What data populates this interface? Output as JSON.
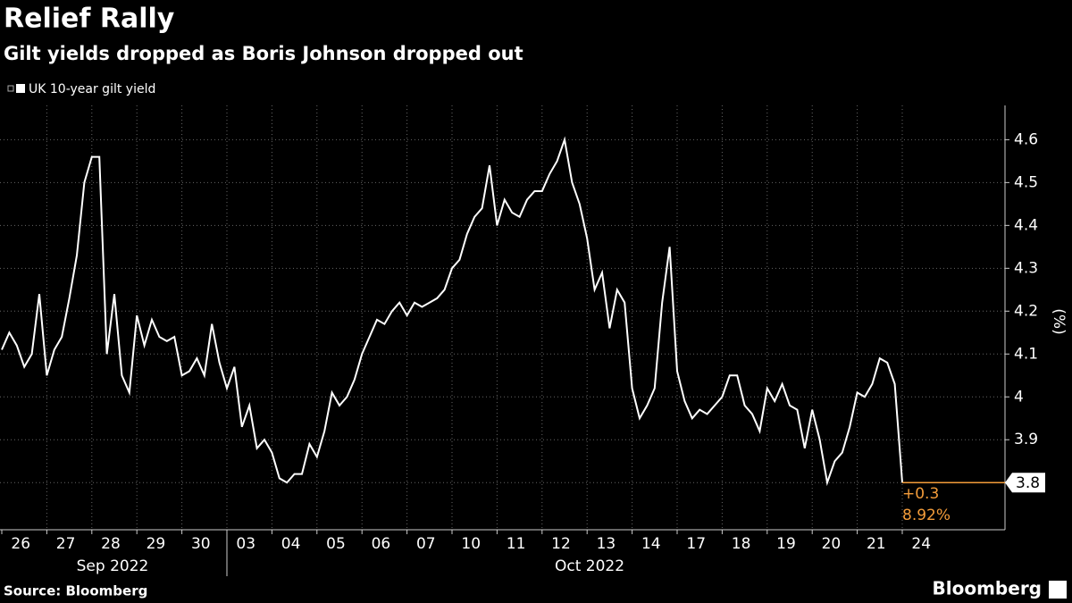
{
  "chart_data": {
    "type": "line",
    "title": "Relief Rally",
    "subtitle": "Gilt yields dropped as Boris Johnson dropped out",
    "y_label": "(%)",
    "source": "Source: Bloomberg",
    "brand": "Bloomberg",
    "months": [
      "Sep 2022",
      "Oct 2022"
    ],
    "annotations": [
      "+0.3",
      "8.92%"
    ],
    "categories": [
      null,
      null,
      null,
      "26",
      null,
      null,
      null,
      null,
      null,
      "27",
      null,
      null,
      null,
      null,
      null,
      "28",
      null,
      null,
      null,
      null,
      null,
      "29",
      null,
      null,
      null,
      null,
      null,
      "30",
      null,
      null,
      null,
      null,
      null,
      "03",
      null,
      null,
      null,
      null,
      null,
      "04",
      null,
      null,
      null,
      null,
      null,
      "05",
      null,
      null,
      null,
      null,
      null,
      "06",
      null,
      null,
      null,
      null,
      null,
      "07",
      null,
      null,
      null,
      null,
      null,
      "10",
      null,
      null,
      null,
      null,
      null,
      "11",
      null,
      null,
      null,
      null,
      null,
      "12",
      null,
      null,
      null,
      null,
      null,
      "13",
      null,
      null,
      null,
      null,
      null,
      "14",
      null,
      null,
      null,
      null,
      null,
      "17",
      null,
      null,
      null,
      null,
      null,
      "18",
      null,
      null,
      null,
      null,
      null,
      "19",
      null,
      null,
      null,
      null,
      null,
      "20",
      null,
      null,
      null,
      null,
      null,
      "21",
      null,
      null,
      null,
      null,
      null,
      "24",
      null,
      null
    ],
    "series": [
      {
        "name": "UK 10-year gilt yield",
        "color": "#ffffff",
        "last_color": "#f39c3a",
        "values": [
          4.11,
          4.15,
          4.12,
          4.07,
          4.1,
          4.24,
          4.05,
          4.11,
          4.14,
          4.23,
          4.33,
          4.5,
          4.56,
          4.56,
          4.1,
          4.24,
          4.05,
          4.01,
          4.19,
          4.12,
          4.18,
          4.14,
          4.13,
          4.14,
          4.05,
          4.06,
          4.09,
          4.05,
          4.17,
          4.08,
          4.02,
          4.07,
          3.93,
          3.98,
          3.88,
          3.9,
          3.87,
          3.81,
          3.8,
          3.82,
          3.82,
          3.89,
          3.86,
          3.92,
          4.01,
          3.98,
          4.0,
          4.04,
          4.1,
          4.14,
          4.18,
          4.17,
          4.2,
          4.22,
          4.19,
          4.22,
          4.21,
          4.22,
          4.23,
          4.25,
          4.3,
          4.32,
          4.38,
          4.42,
          4.44,
          4.54,
          4.4,
          4.46,
          4.43,
          4.42,
          4.46,
          4.48,
          4.48,
          4.52,
          4.55,
          4.6,
          4.5,
          4.45,
          4.37,
          4.25,
          4.29,
          4.16,
          4.25,
          4.22,
          4.02,
          3.95,
          3.98,
          4.02,
          4.22,
          4.35,
          4.06,
          3.99,
          3.95,
          3.97,
          3.96,
          3.98,
          4.0,
          4.05,
          4.05,
          3.98,
          3.96,
          3.92,
          4.02,
          3.99,
          4.03,
          3.98,
          3.97,
          3.88,
          3.97,
          3.9,
          3.8,
          3.85,
          3.87,
          3.93,
          4.01,
          4.0,
          4.03,
          4.09,
          4.08,
          4.03,
          3.8,
          null,
          null,
          null,
          null,
          null
        ],
        "value_labels": [
          null,
          null,
          null,
          null,
          null,
          null,
          null,
          null,
          null,
          null,
          null,
          null,
          null,
          null,
          null,
          null,
          null,
          null,
          null,
          null,
          null,
          null,
          null,
          null,
          null,
          null,
          null,
          null,
          null,
          null,
          null,
          null,
          null,
          null,
          null,
          null,
          null,
          null,
          null,
          null,
          null,
          null,
          null,
          null,
          null,
          null,
          null,
          null,
          null,
          null,
          null,
          null,
          null,
          null,
          null,
          null,
          null,
          null,
          null,
          null,
          null,
          null,
          null,
          null,
          null,
          null,
          null,
          null,
          null,
          null,
          null,
          null,
          null,
          null,
          null,
          null,
          null,
          null,
          null,
          null,
          null,
          null,
          null,
          null,
          null,
          null,
          null,
          null,
          null,
          null,
          null,
          null,
          null,
          null,
          null,
          null,
          null,
          null,
          null,
          null,
          null,
          null,
          null,
          null,
          null,
          null,
          null,
          null,
          null,
          null,
          null,
          null,
          null,
          null,
          null,
          null,
          null,
          null,
          null,
          null,
          "3.8",
          null,
          null,
          null,
          null,
          null
        ]
      }
    ],
    "ylim": [
      3.69,
      4.68
    ],
    "yticks": [
      3.8,
      3.9,
      4.0,
      4.1,
      4.2,
      4.3,
      4.4,
      4.5,
      4.6
    ],
    "grid": true
  }
}
